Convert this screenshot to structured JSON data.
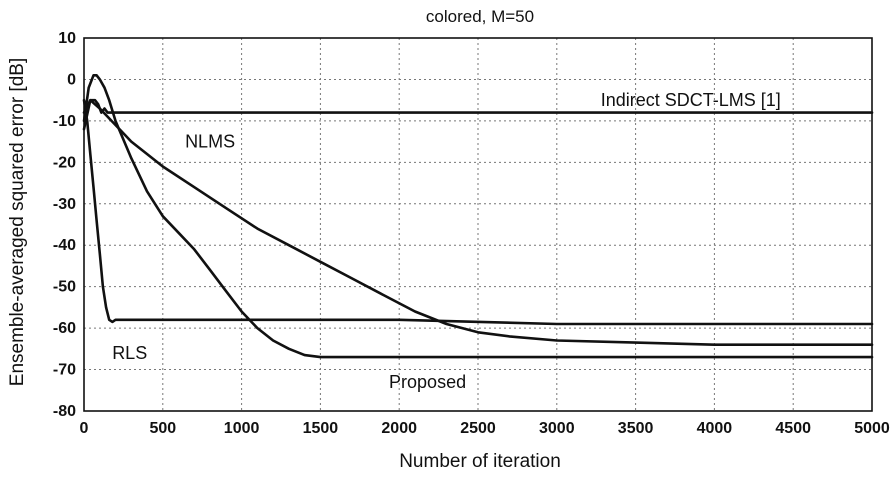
{
  "chart_data": {
    "type": "line",
    "title": "colored, M=50",
    "xlabel": "Number of iteration",
    "ylabel": "Ensemble-averaged squared error [dB]",
    "xlim": [
      0,
      5000
    ],
    "ylim": [
      -80,
      10
    ],
    "grid": true,
    "xticks": [
      0,
      500,
      1000,
      1500,
      2000,
      2500,
      3000,
      3500,
      4000,
      4500,
      5000
    ],
    "yticks": [
      10,
      0,
      -10,
      -20,
      -30,
      -40,
      -50,
      -60,
      -70,
      -80
    ],
    "series": [
      {
        "name": "Indirect SDCT-LMS [1]",
        "x": [
          0,
          40,
          70,
          90,
          110,
          130,
          150,
          200,
          300,
          500,
          1000,
          2000,
          3000,
          4000,
          5000
        ],
        "y": [
          -12,
          -5,
          -5,
          -6,
          -8,
          -7,
          -8,
          -8,
          -8,
          -8,
          -8,
          -8,
          -8,
          -8,
          -8
        ]
      },
      {
        "name": "NLMS",
        "x": [
          0,
          40,
          100,
          200,
          300,
          400,
          500,
          700,
          900,
          1100,
          1300,
          1500,
          1700,
          1900,
          2100,
          2300,
          2500,
          2700,
          3000,
          3500,
          4000,
          4500,
          5000
        ],
        "y": [
          -8,
          -5,
          -7,
          -11,
          -15,
          -18,
          -21,
          -26,
          -31,
          -36,
          -40,
          -44,
          -48,
          -52,
          -56,
          -59,
          -61,
          -62,
          -63,
          -63.5,
          -64,
          -64,
          -64
        ]
      },
      {
        "name": "RLS",
        "x": [
          0,
          20,
          40,
          60,
          80,
          100,
          120,
          140,
          160,
          180,
          200,
          300,
          500,
          1000,
          2000,
          3000,
          4000,
          5000
        ],
        "y": [
          -5,
          -10,
          -18,
          -26,
          -34,
          -42,
          -50,
          -55,
          -58,
          -58.5,
          -58,
          -58,
          -58,
          -58,
          -58,
          -59,
          -59,
          -59
        ]
      },
      {
        "name": "Proposed",
        "x": [
          0,
          30,
          60,
          80,
          100,
          130,
          160,
          200,
          300,
          400,
          500,
          600,
          700,
          800,
          900,
          1000,
          1100,
          1200,
          1300,
          1400,
          1500,
          1600,
          2000,
          2500,
          3000,
          4000,
          5000
        ],
        "y": [
          -10,
          -2,
          1,
          1,
          0,
          -2,
          -5,
          -10,
          -19,
          -27,
          -33,
          -37,
          -41,
          -46,
          -51,
          -56,
          -60,
          -63,
          -65,
          -66.5,
          -67,
          -67,
          -67,
          -67,
          -67,
          -67,
          -67
        ]
      }
    ],
    "annotations": [
      {
        "text": "Indirect SDCT-LMS [1]",
        "x": 3850,
        "y": -5
      },
      {
        "text": "NLMS",
        "x": 800,
        "y": -15
      },
      {
        "text": "RLS",
        "x": 290,
        "y": -66
      },
      {
        "text": "Proposed",
        "x": 2180,
        "y": -73
      }
    ]
  }
}
